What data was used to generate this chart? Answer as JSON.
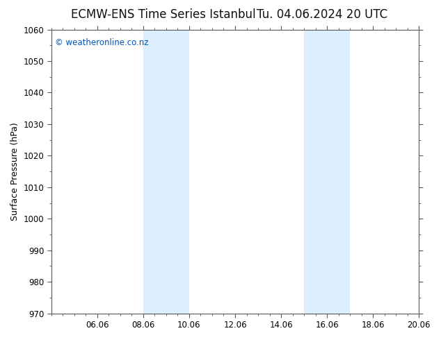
{
  "title_left": "ECMW-ENS Time Series Istanbul",
  "title_right": "Tu. 04.06.2024 20 UTC",
  "ylabel": "Surface Pressure (hPa)",
  "ylim": [
    970,
    1060
  ],
  "yticks": [
    970,
    980,
    990,
    1000,
    1010,
    1020,
    1030,
    1040,
    1050,
    1060
  ],
  "xlim_start": 4.0,
  "xlim_end": 18.67,
  "xtick_labels": [
    "06.06",
    "08.06",
    "10.06",
    "12.06",
    "14.06",
    "16.06",
    "18.06",
    "20.06"
  ],
  "xtick_positions": [
    6,
    8,
    10,
    12,
    14,
    16,
    18,
    20
  ],
  "shaded_bands": [
    {
      "xmin": 8.0,
      "xmax": 10.0
    },
    {
      "xmin": 15.0,
      "xmax": 17.0
    }
  ],
  "shaded_color": "#ddeeff",
  "background_color": "#ffffff",
  "watermark_text": "© weatheronline.co.nz",
  "watermark_color": "#0055bb",
  "spine_color": "#555555",
  "title_fontsize": 12,
  "label_fontsize": 9,
  "tick_fontsize": 8.5
}
